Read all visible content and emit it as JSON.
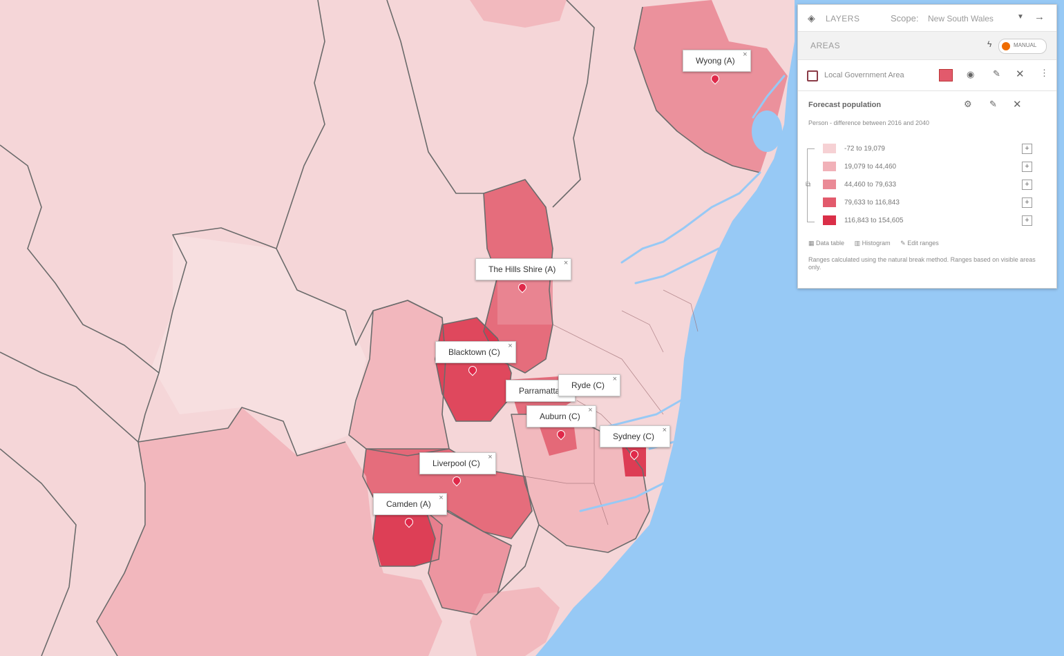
{
  "map": {
    "labels": [
      {
        "name": "Wyong (A)"
      },
      {
        "name": "The Hills Shire (A)"
      },
      {
        "name": "Blacktown (C)"
      },
      {
        "name": "Parramatta"
      },
      {
        "name": "Ryde (C)"
      },
      {
        "name": "Auburn (C)"
      },
      {
        "name": "Sydney (C)"
      },
      {
        "name": "Liverpool (C)"
      },
      {
        "name": "Camden (A)"
      }
    ],
    "close_glyph": "×",
    "colors": {
      "sea": "#97c9f5",
      "land": "#f5d6d8",
      "class1": "#f6d1d4",
      "class2": "#f1b1b8",
      "class3": "#ea8a96",
      "class4": "#e25a6c",
      "class5": "#da2f48",
      "border": "#6b6b6b"
    }
  },
  "panel": {
    "title": "LAYERS",
    "scope_label": "Scope:",
    "scope_value": "New South Wales",
    "section": "AREAS",
    "mode_label": "MANUAL",
    "layer_name": "Local Government Area",
    "indicator_title": "Forecast population",
    "indicator_subtitle": "Person - difference between 2016 and 2040",
    "legend": [
      {
        "label": "-72 to 19,079",
        "color": "#f6d1d4"
      },
      {
        "label": "19,079 to 44,460",
        "color": "#f1b1b8"
      },
      {
        "label": "44,460 to 79,633",
        "color": "#ea8a96"
      },
      {
        "label": "79,633 to 116,843",
        "color": "#e25a6c"
      },
      {
        "label": "116,843 to 154,605",
        "color": "#da2f48"
      }
    ],
    "links": {
      "data_table": "Data table",
      "histogram": "Histogram",
      "edit_ranges": "Edit ranges"
    },
    "note": "Ranges calculated using the natural break method. Ranges based on visible areas only.",
    "icons": [
      "layers-icon",
      "chevron-down-icon",
      "arrow-right-icon",
      "lightning-icon",
      "eye-icon",
      "edit-icon",
      "close-icon",
      "more-icon",
      "settings-icon",
      "plus-icon",
      "link-icon",
      "table-icon",
      "histogram-icon"
    ]
  }
}
